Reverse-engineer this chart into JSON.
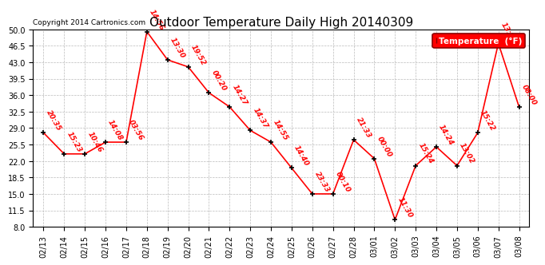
{
  "title": "Outdoor Temperature Daily High 20140309",
  "copyright": "Copyright 2014 Cartronics.com",
  "legend_label": "Temperature  (°F)",
  "line_color": "red",
  "marker_color": "black",
  "background_color": "#ffffff",
  "plot_bg_color": "#ffffff",
  "grid_color": "#bbbbbb",
  "ylim": [
    8.0,
    50.0
  ],
  "yticks": [
    8.0,
    11.5,
    15.0,
    18.5,
    22.0,
    25.5,
    29.0,
    32.5,
    36.0,
    39.5,
    43.0,
    46.5,
    50.0
  ],
  "dates": [
    "02/13",
    "02/14",
    "02/15",
    "02/16",
    "02/17",
    "02/18",
    "02/19",
    "02/20",
    "02/21",
    "02/22",
    "02/23",
    "02/24",
    "02/25",
    "02/26",
    "02/27",
    "02/28",
    "03/01",
    "03/02",
    "03/03",
    "03/04",
    "03/05",
    "03/06",
    "03/07",
    "03/08"
  ],
  "values": [
    28.0,
    23.5,
    23.5,
    26.0,
    26.0,
    49.5,
    43.5,
    42.0,
    36.5,
    33.5,
    28.5,
    26.0,
    20.5,
    15.0,
    15.0,
    26.5,
    22.5,
    9.5,
    21.0,
    25.0,
    21.0,
    28.0,
    47.0,
    33.5
  ],
  "time_labels": [
    "20:35",
    "15:23",
    "10:46",
    "14:08",
    "03:56",
    "14:56",
    "13:30",
    "19:52",
    "00:20",
    "14:27",
    "14:37",
    "14:55",
    "14:40",
    "23:33",
    "00:10",
    "21:33",
    "00:00",
    "11:30",
    "15:24",
    "14:24",
    "13:02",
    "15:22",
    "13:??",
    "08:00"
  ],
  "label_rotation": -60,
  "title_fontsize": 11,
  "tick_fontsize": 7,
  "label_fontsize": 6.5
}
